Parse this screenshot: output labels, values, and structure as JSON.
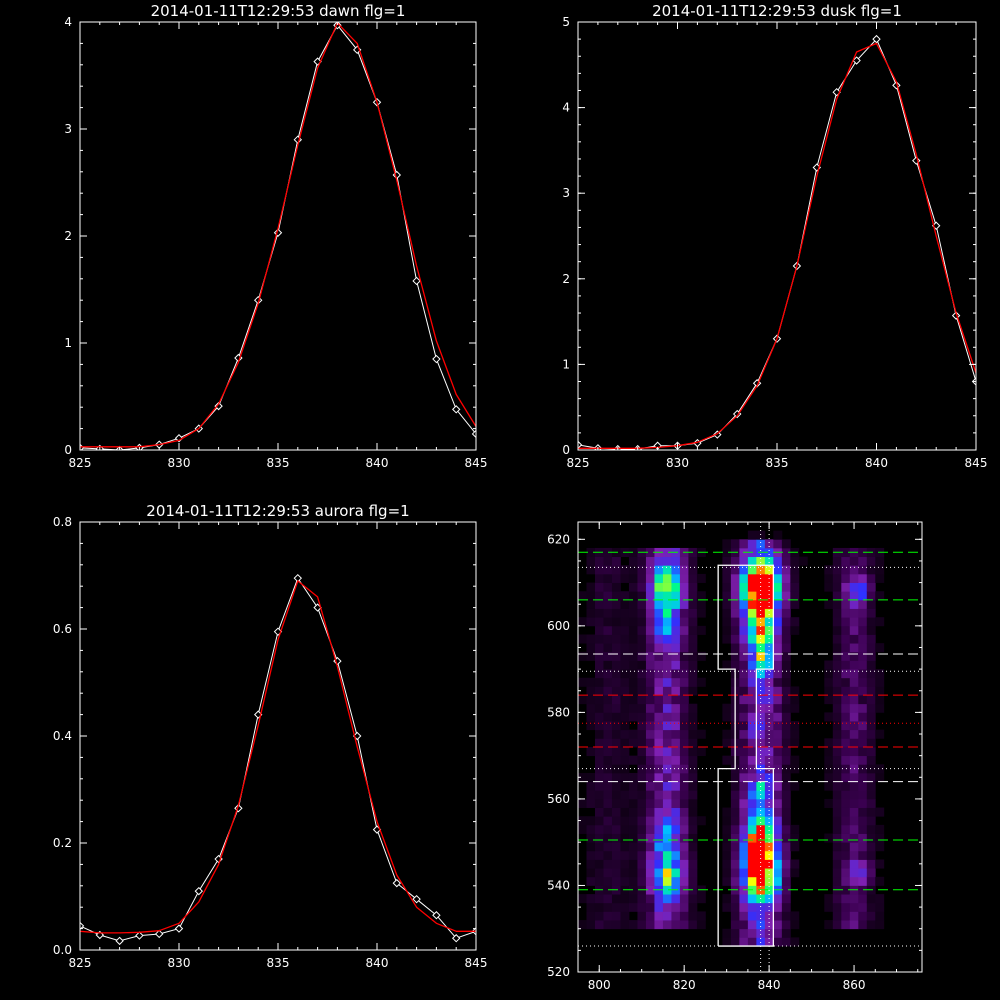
{
  "colors": {
    "background": "#000000",
    "axes": "#ffffff",
    "data": "#ffffff",
    "fit": "#ff0000",
    "guide_green": "#00ff00",
    "guide_white": "#ffffff",
    "guide_red": "#ff0000"
  },
  "chart_data": [
    {
      "id": "dawn",
      "type": "line",
      "title": "2014-01-11T12:29:53 dawn flg=1",
      "xlim": [
        825,
        845
      ],
      "ylim": [
        0,
        4
      ],
      "xticks": [
        825,
        830,
        835,
        840,
        845
      ],
      "xtick_labels": [
        "825",
        "830",
        "835",
        "840",
        "845"
      ],
      "yticks": [
        0,
        1,
        2,
        3,
        4
      ],
      "ytick_labels": [
        "0",
        "1",
        "2",
        "3",
        "4"
      ],
      "series": [
        {
          "kind": "data",
          "marker": "diamond",
          "x": [
            825,
            826,
            827,
            828,
            829,
            830,
            831,
            832,
            833,
            834,
            835,
            836,
            837,
            838,
            839,
            840,
            841,
            842,
            843,
            844,
            845
          ],
          "y": [
            0.02,
            0.01,
            0.0,
            0.02,
            0.05,
            0.11,
            0.2,
            0.41,
            0.86,
            1.4,
            2.03,
            2.9,
            3.63,
            3.97,
            3.74,
            3.25,
            2.57,
            1.58,
            0.85,
            0.38,
            0.15
          ]
        },
        {
          "kind": "fit",
          "x": [
            825,
            826,
            827,
            828,
            829,
            830,
            831,
            832,
            833,
            834,
            835,
            836,
            837,
            838,
            839,
            840,
            841,
            842,
            843,
            844,
            845
          ],
          "y": [
            0.03,
            0.03,
            0.03,
            0.03,
            0.05,
            0.09,
            0.2,
            0.43,
            0.82,
            1.37,
            2.07,
            2.85,
            3.57,
            3.99,
            3.8,
            3.25,
            2.52,
            1.72,
            1.02,
            0.52,
            0.22
          ]
        }
      ]
    },
    {
      "id": "dusk",
      "type": "line",
      "title": "2014-01-11T12:29:53 dusk flg=1",
      "xlim": [
        825,
        845
      ],
      "ylim": [
        0,
        5
      ],
      "xticks": [
        825,
        830,
        835,
        840,
        845
      ],
      "xtick_labels": [
        "825",
        "830",
        "835",
        "840",
        "845"
      ],
      "yticks": [
        0,
        1,
        2,
        3,
        4,
        5
      ],
      "ytick_labels": [
        "0",
        "1",
        "2",
        "3",
        "4",
        "5"
      ],
      "series": [
        {
          "kind": "data",
          "marker": "diamond",
          "x": [
            825,
            826,
            827,
            828,
            829,
            830,
            831,
            832,
            833,
            834,
            835,
            836,
            837,
            838,
            839,
            840,
            841,
            842,
            843,
            844,
            845
          ],
          "y": [
            0.06,
            0.02,
            0.01,
            0.01,
            0.05,
            0.05,
            0.08,
            0.18,
            0.42,
            0.78,
            1.3,
            2.15,
            3.3,
            4.18,
            4.55,
            4.8,
            4.26,
            3.38,
            2.62,
            1.57,
            0.8
          ]
        },
        {
          "kind": "fit",
          "x": [
            825,
            826,
            827,
            828,
            829,
            830,
            831,
            832,
            833,
            834,
            835,
            836,
            837,
            838,
            839,
            840,
            841,
            842,
            843,
            844,
            845
          ],
          "y": [
            0.02,
            0.02,
            0.02,
            0.02,
            0.03,
            0.05,
            0.09,
            0.19,
            0.4,
            0.75,
            1.3,
            2.15,
            3.2,
            4.1,
            4.65,
            4.75,
            4.3,
            3.45,
            2.5,
            1.6,
            0.9
          ]
        }
      ]
    },
    {
      "id": "aurora",
      "type": "line",
      "title": "2014-01-11T12:29:53 aurora flg=1",
      "xlim": [
        825,
        845
      ],
      "ylim": [
        0,
        0.8
      ],
      "xticks": [
        825,
        830,
        835,
        840,
        845
      ],
      "xtick_labels": [
        "825",
        "830",
        "835",
        "840",
        "845"
      ],
      "yticks": [
        0,
        0.2,
        0.4,
        0.6,
        0.8
      ],
      "ytick_labels": [
        "0.0",
        "0.2",
        "0.4",
        "0.6",
        "0.8"
      ],
      "series": [
        {
          "kind": "data",
          "marker": "diamond",
          "x": [
            825,
            826,
            827,
            828,
            829,
            830,
            831,
            832,
            833,
            834,
            835,
            836,
            837,
            838,
            839,
            840,
            841,
            842,
            843,
            844,
            845
          ],
          "y": [
            0.045,
            0.028,
            0.017,
            0.027,
            0.03,
            0.04,
            0.11,
            0.17,
            0.265,
            0.44,
            0.595,
            0.695,
            0.64,
            0.54,
            0.4,
            0.225,
            0.125,
            0.095,
            0.065,
            0.022,
            0.035
          ]
        },
        {
          "kind": "fit",
          "x": [
            825,
            826,
            827,
            828,
            829,
            830,
            831,
            832,
            833,
            834,
            835,
            836,
            837,
            838,
            839,
            840,
            841,
            842,
            843,
            844,
            845
          ],
          "y": [
            0.035,
            0.032,
            0.032,
            0.033,
            0.036,
            0.05,
            0.09,
            0.16,
            0.27,
            0.42,
            0.58,
            0.69,
            0.66,
            0.53,
            0.38,
            0.24,
            0.14,
            0.08,
            0.05,
            0.035,
            0.035
          ]
        }
      ]
    },
    {
      "id": "spectrogram",
      "type": "heatmap",
      "title": "",
      "xlim": [
        795,
        876
      ],
      "ylim": [
        520,
        624
      ],
      "xticks": [
        800,
        820,
        840,
        860
      ],
      "xtick_labels": [
        "800",
        "820",
        "840",
        "860"
      ],
      "yticks": [
        520,
        540,
        560,
        580,
        600,
        620
      ],
      "ytick_labels": [
        "520",
        "540",
        "560",
        "580",
        "600",
        "620"
      ],
      "colormap": [
        "#000000",
        "#3a0050",
        "#8020b0",
        "#3030ff",
        "#00c0ff",
        "#00ff80",
        "#ffff00",
        "#ff0000"
      ],
      "columns": [
        {
          "x_center": 816,
          "width": 8,
          "y_range": [
            530,
            618
          ],
          "level": 0.25
        },
        {
          "x_center": 838,
          "width": 8,
          "y_range": [
            526,
            620
          ],
          "level": 0.3
        },
        {
          "x_center": 860,
          "width": 7,
          "y_range": [
            530,
            618
          ],
          "level": 0.15
        },
        {
          "x_center": 802,
          "width": 8,
          "y_range": [
            530,
            618
          ],
          "level": 0.07
        }
      ],
      "hotspots": [
        {
          "x": 838,
          "y": 609,
          "sx": 3.2,
          "sy": 4.5,
          "amp": 1.0
        },
        {
          "x": 838,
          "y": 599,
          "sx": 2.5,
          "sy": 4.0,
          "amp": 0.45
        },
        {
          "x": 838,
          "y": 592,
          "sx": 1.5,
          "sy": 3.0,
          "amp": 0.35
        },
        {
          "x": 838,
          "y": 544,
          "sx": 2.8,
          "sy": 5.0,
          "amp": 0.98
        },
        {
          "x": 838,
          "y": 552,
          "sx": 2.5,
          "sy": 3.0,
          "amp": 0.45
        },
        {
          "x": 838,
          "y": 562,
          "sx": 2.0,
          "sy": 2.0,
          "amp": 0.38
        },
        {
          "x": 816,
          "y": 609,
          "sx": 2.5,
          "sy": 4.0,
          "amp": 0.55
        },
        {
          "x": 816,
          "y": 600,
          "sx": 2.0,
          "sy": 3.0,
          "amp": 0.3
        },
        {
          "x": 816,
          "y": 543,
          "sx": 2.5,
          "sy": 4.0,
          "amp": 0.5
        },
        {
          "x": 816,
          "y": 553,
          "sx": 2.0,
          "sy": 3.0,
          "amp": 0.3
        },
        {
          "x": 861,
          "y": 608,
          "sx": 2.0,
          "sy": 2.5,
          "amp": 0.28
        },
        {
          "x": 861,
          "y": 543,
          "sx": 2.0,
          "sy": 2.0,
          "amp": 0.22
        }
      ],
      "hlines": [
        {
          "y": 617,
          "style": "dashed",
          "color": "#00ff00"
        },
        {
          "y": 613.5,
          "style": "dotted",
          "color": "#ffffff"
        },
        {
          "y": 606,
          "style": "dashed",
          "color": "#00ff00"
        },
        {
          "y": 593.5,
          "style": "dashed",
          "color": "#ffffff"
        },
        {
          "y": 589.5,
          "style": "dotted",
          "color": "#ffffff"
        },
        {
          "y": 584,
          "style": "dashed",
          "color": "#ff0000"
        },
        {
          "y": 577.5,
          "style": "dotted",
          "color": "#ff0000"
        },
        {
          "y": 572,
          "style": "dashed",
          "color": "#ff0000"
        },
        {
          "y": 567,
          "style": "dotted",
          "color": "#ffffff"
        },
        {
          "y": 564,
          "style": "dashed",
          "color": "#ffffff"
        },
        {
          "y": 550.5,
          "style": "dashed",
          "color": "#00ff00"
        },
        {
          "y": 539,
          "style": "dashed",
          "color": "#00ff00"
        },
        {
          "y": 526,
          "style": "dotted",
          "color": "#ffffff"
        }
      ],
      "vlines": [
        {
          "x": 838,
          "style": "dotted",
          "color": "#ffffff"
        },
        {
          "x": 840,
          "style": "dotted",
          "color": "#ffffff"
        }
      ],
      "outline": [
        [
          828,
          526
        ],
        [
          841,
          526
        ],
        [
          841,
          567
        ],
        [
          837,
          567
        ],
        [
          837,
          590
        ],
        [
          841,
          590
        ],
        [
          841,
          614
        ],
        [
          828,
          614
        ],
        [
          828,
          590
        ],
        [
          832,
          590
        ],
        [
          832,
          567
        ],
        [
          828,
          567
        ],
        [
          828,
          526
        ]
      ]
    }
  ]
}
